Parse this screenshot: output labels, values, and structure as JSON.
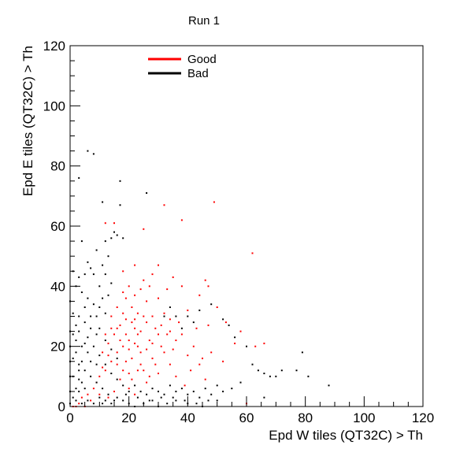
{
  "chart_data": {
    "type": "scatter",
    "title": "Run 1",
    "xlabel": "Epd W tiles (QT32C) > Th",
    "ylabel": "Epd E tiles (QT32C) > Th",
    "xlim": [
      0,
      120
    ],
    "ylim": [
      0,
      120
    ],
    "x_ticks": [
      0,
      20,
      40,
      60,
      80,
      100,
      120
    ],
    "y_ticks": [
      0,
      20,
      40,
      60,
      80,
      100,
      120
    ],
    "x_minor_step": 5,
    "y_minor_step": 5,
    "grid": false,
    "legend_position": "top-left",
    "series": [
      {
        "name": "Good",
        "color": "#ff0000",
        "points": [
          [
            49,
            68
          ],
          [
            62,
            51
          ],
          [
            32,
            67
          ],
          [
            38,
            62
          ],
          [
            25,
            59
          ],
          [
            12,
            61
          ],
          [
            15,
            61
          ],
          [
            46,
            42
          ],
          [
            47,
            40
          ],
          [
            44,
            37
          ],
          [
            50,
            33
          ],
          [
            40,
            32
          ],
          [
            47,
            27
          ],
          [
            53,
            28
          ],
          [
            58,
            25
          ],
          [
            43,
            26
          ],
          [
            56,
            21
          ],
          [
            38,
            24
          ],
          [
            36,
            22
          ],
          [
            40,
            17
          ],
          [
            44,
            14
          ],
          [
            45,
            16
          ],
          [
            30,
            47
          ],
          [
            28,
            44
          ],
          [
            22,
            47
          ],
          [
            18,
            45
          ],
          [
            26,
            35
          ],
          [
            28,
            30
          ],
          [
            20,
            40
          ],
          [
            30,
            36
          ],
          [
            34,
            29
          ],
          [
            32,
            31
          ],
          [
            19,
            36
          ],
          [
            24,
            39
          ],
          [
            21,
            28
          ],
          [
            22,
            26
          ],
          [
            23,
            24
          ],
          [
            20,
            22
          ],
          [
            18,
            20
          ],
          [
            16,
            18
          ],
          [
            14,
            15
          ],
          [
            12,
            12
          ],
          [
            10,
            10
          ],
          [
            8,
            6
          ],
          [
            6,
            4
          ],
          [
            4,
            3
          ],
          [
            3,
            1
          ],
          [
            2,
            0
          ],
          [
            1,
            0
          ],
          [
            5,
            0
          ],
          [
            20,
            6
          ],
          [
            22,
            4
          ],
          [
            26,
            8
          ],
          [
            30,
            11
          ],
          [
            34,
            14
          ],
          [
            36,
            10
          ],
          [
            28,
            16
          ],
          [
            25,
            12
          ],
          [
            17,
            9
          ],
          [
            15,
            5
          ],
          [
            13,
            3
          ],
          [
            31,
            20
          ],
          [
            27,
            22
          ],
          [
            24,
            18
          ],
          [
            19,
            15
          ],
          [
            35,
            19
          ],
          [
            33,
            24
          ],
          [
            29,
            26
          ],
          [
            26,
            28
          ],
          [
            23,
            31
          ],
          [
            21,
            33
          ],
          [
            17,
            27
          ],
          [
            15,
            24
          ],
          [
            13,
            21
          ],
          [
            11,
            18
          ],
          [
            14,
            30
          ],
          [
            16,
            33
          ],
          [
            18,
            31
          ],
          [
            42,
            20
          ],
          [
            48,
            18
          ],
          [
            52,
            15
          ],
          [
            46,
            9
          ],
          [
            39,
            7
          ],
          [
            41,
            12
          ],
          [
            60,
            1
          ],
          [
            63,
            20
          ],
          [
            66,
            21
          ],
          [
            38,
            40
          ],
          [
            35,
            43
          ],
          [
            33,
            39
          ],
          [
            27,
            40
          ],
          [
            25,
            42
          ],
          [
            22,
            37
          ],
          [
            18,
            38
          ],
          [
            20,
            19
          ],
          [
            21,
            16
          ],
          [
            23,
            20
          ],
          [
            24,
            25
          ],
          [
            19,
            24
          ],
          [
            17,
            22
          ],
          [
            22,
            21
          ],
          [
            26,
            19
          ],
          [
            28,
            21
          ],
          [
            30,
            24
          ],
          [
            32,
            18
          ],
          [
            29,
            14
          ],
          [
            27,
            10
          ],
          [
            23,
            12
          ],
          [
            18,
            12
          ],
          [
            16,
            14
          ],
          [
            20,
            11
          ],
          [
            21,
            9
          ],
          [
            24,
            14
          ],
          [
            31,
            27
          ],
          [
            34,
            25
          ],
          [
            37,
            28
          ],
          [
            25,
            30
          ],
          [
            22,
            29
          ],
          [
            19,
            29
          ],
          [
            14,
            26
          ],
          [
            12,
            24
          ],
          [
            16,
            26
          ],
          [
            13,
            17
          ],
          [
            11,
            13
          ],
          [
            9,
            8
          ],
          [
            10,
            4
          ],
          [
            7,
            2
          ]
        ]
      },
      {
        "name": "Bad",
        "color": "#000000",
        "points": [
          [
            6,
            85
          ],
          [
            8,
            84
          ],
          [
            17,
            75
          ],
          [
            26,
            71
          ],
          [
            3,
            76
          ],
          [
            11,
            68
          ],
          [
            17,
            67
          ],
          [
            15,
            58
          ],
          [
            16,
            57
          ],
          [
            14,
            56
          ],
          [
            18,
            56
          ],
          [
            12,
            55
          ],
          [
            4,
            55
          ],
          [
            9,
            52
          ],
          [
            13,
            50
          ],
          [
            11,
            47
          ],
          [
            7,
            46
          ],
          [
            5,
            44
          ],
          [
            3,
            43
          ],
          [
            1,
            45
          ],
          [
            2,
            40
          ],
          [
            4,
            38
          ],
          [
            6,
            36
          ],
          [
            8,
            34
          ],
          [
            10,
            33
          ],
          [
            12,
            31
          ],
          [
            3,
            30
          ],
          [
            5,
            28
          ],
          [
            7,
            26
          ],
          [
            9,
            24
          ],
          [
            2,
            22
          ],
          [
            4,
            20
          ],
          [
            6,
            18
          ],
          [
            1,
            16
          ],
          [
            3,
            14
          ],
          [
            5,
            12
          ],
          [
            7,
            10
          ],
          [
            9,
            8
          ],
          [
            11,
            6
          ],
          [
            13,
            4
          ],
          [
            15,
            2
          ],
          [
            1,
            10
          ],
          [
            2,
            6
          ],
          [
            1,
            3
          ],
          [
            0,
            1
          ],
          [
            3,
            5
          ],
          [
            4,
            8
          ],
          [
            6,
            2
          ],
          [
            8,
            1
          ],
          [
            10,
            3
          ],
          [
            12,
            2
          ],
          [
            14,
            1
          ],
          [
            16,
            3
          ],
          [
            18,
            2
          ],
          [
            20,
            1
          ],
          [
            22,
            0
          ],
          [
            25,
            1
          ],
          [
            28,
            2
          ],
          [
            30,
            0
          ],
          [
            33,
            1
          ],
          [
            36,
            2
          ],
          [
            40,
            1
          ],
          [
            45,
            0
          ],
          [
            44,
            3
          ],
          [
            50,
            2
          ],
          [
            55,
            6
          ],
          [
            58,
            8
          ],
          [
            62,
            14
          ],
          [
            64,
            12
          ],
          [
            66,
            11
          ],
          [
            68,
            10
          ],
          [
            70,
            10
          ],
          [
            72,
            12
          ],
          [
            77,
            12
          ],
          [
            79,
            18
          ],
          [
            81,
            10
          ],
          [
            88,
            7
          ],
          [
            66,
            3
          ],
          [
            60,
            20
          ],
          [
            56,
            23
          ],
          [
            52,
            29
          ],
          [
            48,
            34
          ],
          [
            44,
            32
          ],
          [
            40,
            30
          ],
          [
            54,
            27
          ],
          [
            42,
            28
          ],
          [
            38,
            26
          ],
          [
            36,
            30
          ],
          [
            34,
            33
          ],
          [
            32,
            30
          ],
          [
            6,
            48
          ],
          [
            8,
            44
          ],
          [
            10,
            40
          ],
          [
            12,
            44
          ],
          [
            14,
            41
          ],
          [
            13,
            37
          ],
          [
            11,
            36
          ],
          [
            9,
            30
          ],
          [
            7,
            30
          ],
          [
            5,
            33
          ],
          [
            3,
            25
          ],
          [
            2,
            27
          ],
          [
            1,
            31
          ],
          [
            0,
            35
          ],
          [
            0,
            25
          ],
          [
            0,
            20
          ],
          [
            0,
            15
          ],
          [
            0,
            10
          ],
          [
            0,
            5
          ],
          [
            1,
            24
          ],
          [
            2,
            18
          ],
          [
            3,
            12
          ],
          [
            4,
            15
          ],
          [
            5,
            21
          ],
          [
            6,
            23
          ],
          [
            8,
            20
          ],
          [
            10,
            17
          ],
          [
            12,
            14
          ],
          [
            14,
            11
          ],
          [
            16,
            9
          ],
          [
            18,
            7
          ],
          [
            20,
            5
          ],
          [
            22,
            7
          ],
          [
            24,
            5
          ],
          [
            26,
            4
          ],
          [
            28,
            6
          ],
          [
            30,
            5
          ],
          [
            32,
            4
          ],
          [
            34,
            7
          ],
          [
            36,
            5
          ],
          [
            38,
            6
          ],
          [
            40,
            4
          ],
          [
            42,
            5
          ],
          [
            46,
            6
          ],
          [
            48,
            4
          ],
          [
            50,
            7
          ],
          [
            52,
            5
          ],
          [
            10,
            26
          ],
          [
            12,
            22
          ],
          [
            14,
            19
          ],
          [
            16,
            16
          ],
          [
            9,
            14
          ],
          [
            7,
            15
          ],
          [
            5,
            6
          ],
          [
            3,
            9
          ],
          [
            2,
            2
          ],
          [
            4,
            1
          ],
          [
            11,
            1
          ],
          [
            19,
            4
          ],
          [
            23,
            3
          ],
          [
            27,
            2
          ],
          [
            31,
            3
          ],
          [
            35,
            3
          ],
          [
            39,
            2
          ],
          [
            43,
            1
          ],
          [
            47,
            2
          ]
        ]
      }
    ]
  }
}
